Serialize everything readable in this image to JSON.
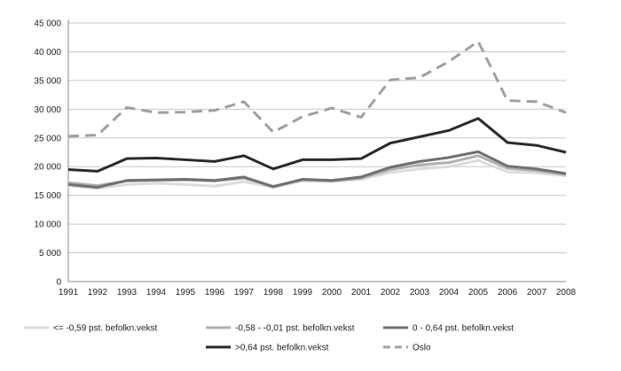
{
  "chart_data": {
    "type": "line",
    "title": "",
    "xlabel": "",
    "ylabel": "",
    "ylim": [
      0,
      45000
    ],
    "yticks": [
      "0",
      "5 000",
      "10 000",
      "15 000",
      "20 000",
      "25 000",
      "30 000",
      "35 000",
      "40 000",
      "45 000"
    ],
    "x": [
      "1991",
      "1992",
      "1993",
      "1994",
      "1995",
      "1996",
      "1997",
      "1998",
      "1999",
      "2000",
      "2001",
      "2002",
      "2003",
      "2004",
      "2005",
      "2006",
      "2007",
      "2008"
    ],
    "grid": true,
    "legend_placement": "bottom",
    "series": [
      {
        "name": "<= -0,59 pst. befolkn.vekst",
        "color": "#dcdcdc",
        "dash": false,
        "values": [
          16700,
          16200,
          16900,
          17100,
          16900,
          16600,
          17400,
          16400,
          17500,
          17400,
          17800,
          19000,
          19600,
          20000,
          21100,
          19100,
          18900,
          18400
        ]
      },
      {
        "name": "-0,58 - -0,01 pst. befolkn.vekst",
        "color": "#b0b0b0",
        "dash": false,
        "values": [
          17200,
          16700,
          17500,
          17600,
          17700,
          17500,
          18000,
          16600,
          17700,
          17500,
          18000,
          19500,
          20300,
          20700,
          21900,
          19700,
          19300,
          18600
        ]
      },
      {
        "name": "0 - 0,64 pst. befolkn.vekst",
        "color": "#707070",
        "dash": false,
        "values": [
          16900,
          16400,
          17600,
          17700,
          17800,
          17600,
          18200,
          16500,
          17800,
          17600,
          18200,
          19900,
          20900,
          21600,
          22600,
          20100,
          19600,
          18800
        ]
      },
      {
        "name": ">0,64 pst. befolkn.vekst",
        "color": "#2a2a2a",
        "dash": false,
        "values": [
          19500,
          19200,
          21400,
          21500,
          21200,
          20900,
          21900,
          19600,
          21200,
          21200,
          21400,
          24100,
          25200,
          26300,
          28400,
          24200,
          23700,
          22500
        ]
      },
      {
        "name": "Oslo",
        "color": "#a0a0a0",
        "dash": true,
        "values": [
          25300,
          25500,
          30300,
          29400,
          29500,
          29800,
          31300,
          26000,
          28700,
          30200,
          28600,
          35100,
          35500,
          38300,
          41800,
          31500,
          31300,
          29400
        ]
      }
    ]
  }
}
